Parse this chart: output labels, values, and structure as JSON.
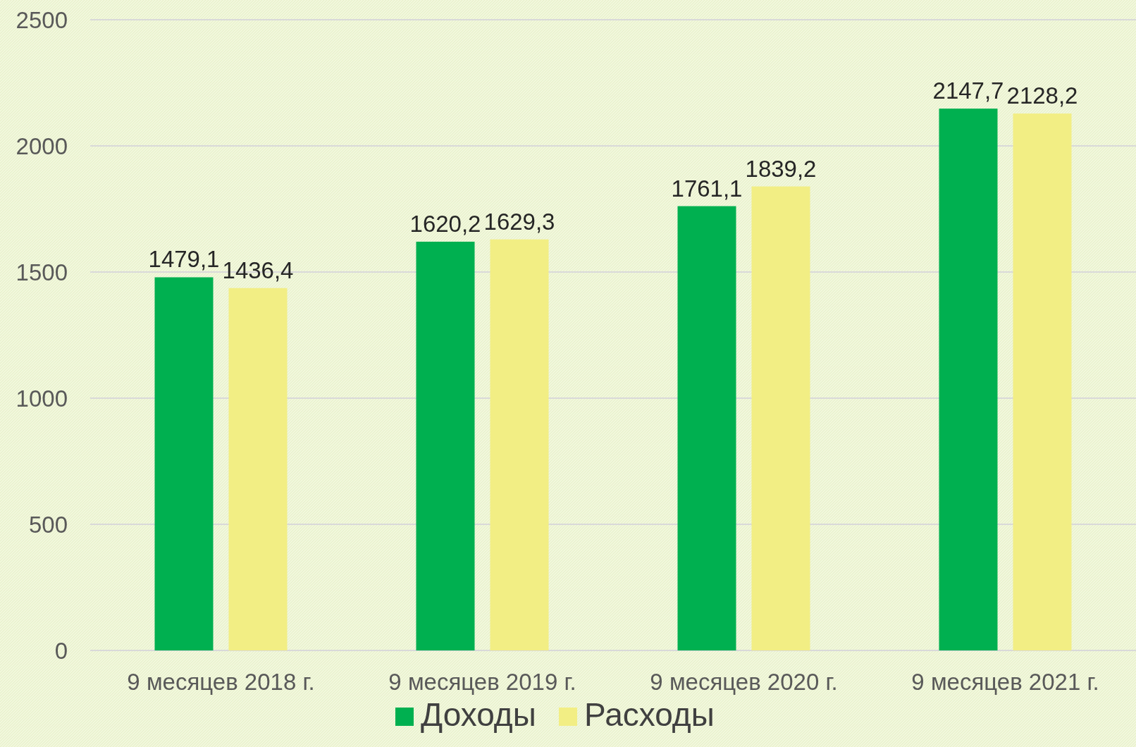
{
  "chart_data": {
    "type": "bar",
    "categories": [
      "9 месяцев 2018 г.",
      "9 месяцев 2019 г.",
      "9 месяцев 2020 г.",
      "9 месяцев 2021 г."
    ],
    "series": [
      {
        "name": "Доходы",
        "color": "#00b050",
        "values": [
          1479.1,
          1620.2,
          1761.1,
          2147.7
        ],
        "value_labels": [
          "1479,1",
          "1620,2",
          "1761,1",
          "2147,7"
        ]
      },
      {
        "name": "Расходы",
        "color": "#f2ee84",
        "values": [
          1436.4,
          1629.3,
          1839.2,
          2128.2
        ],
        "value_labels": [
          "1436,4",
          "1629,3",
          "1839,2",
          "2128,2"
        ]
      }
    ],
    "ylim": [
      0,
      2500
    ],
    "yticks": [
      0,
      500,
      1000,
      1500,
      2000,
      2500
    ],
    "grid": "y",
    "legend": "bottom"
  }
}
